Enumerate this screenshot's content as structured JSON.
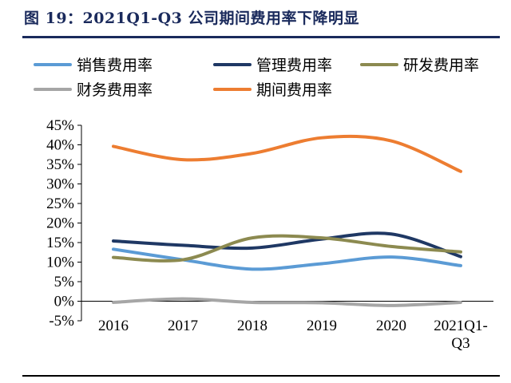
{
  "figure": {
    "title": "图 19：2021Q1-Q3 公司期间费用率下降明显"
  },
  "chart_data": {
    "type": "line",
    "categories": [
      "2016",
      "2017",
      "2018",
      "2019",
      "2020",
      "2021Q1-Q3"
    ],
    "category_lines": [
      [
        "2016"
      ],
      [
        "2017"
      ],
      [
        "2018"
      ],
      [
        "2019"
      ],
      [
        "2020"
      ],
      [
        "2021Q1-",
        "Q3"
      ]
    ],
    "ylim": [
      -5,
      45
    ],
    "yticks": [
      -5,
      0,
      5,
      10,
      15,
      20,
      25,
      30,
      35,
      40,
      45
    ],
    "ytick_labels": [
      "-5%",
      "0%",
      "5%",
      "10%",
      "15%",
      "20%",
      "25%",
      "30%",
      "35%",
      "40%",
      "45%"
    ],
    "legend_position": "top",
    "series": [
      {
        "name": "销售费用率",
        "color": "#5b9bd5",
        "values": [
          13.3,
          10.6,
          8.2,
          9.6,
          11.3,
          9.1
        ]
      },
      {
        "name": "管理费用率",
        "color": "#1f3864",
        "values": [
          15.4,
          14.3,
          13.6,
          15.9,
          17.2,
          11.4
        ]
      },
      {
        "name": "研发费用率",
        "color": "#8c8a50",
        "values": [
          11.2,
          10.6,
          16.2,
          16.2,
          14.0,
          12.6
        ]
      },
      {
        "name": "财务费用率",
        "color": "#a6a6a6",
        "values": [
          -0.3,
          0.6,
          -0.3,
          -0.4,
          -1.1,
          -0.3
        ]
      },
      {
        "name": "期间费用率",
        "color": "#ed7d31",
        "values": [
          39.6,
          36.2,
          37.8,
          41.8,
          41.0,
          33.2
        ]
      }
    ]
  }
}
